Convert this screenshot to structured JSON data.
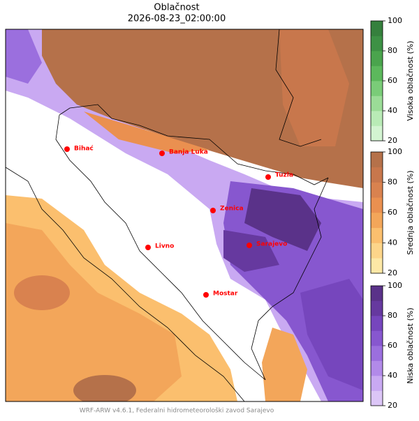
{
  "title": "Oblačnost",
  "subtitle": "2026-08-23_02:00:00",
  "cities": [
    "Bihać",
    "Banja Luka",
    "Tuzla",
    "Zenica",
    "Livno",
    "Sarajevo",
    "Mostar"
  ],
  "colorbars": [
    {
      "label": "Visoka oblačnost (%)",
      "ticks": [
        20,
        40,
        60,
        80,
        100
      ],
      "colors": [
        "#d3f4d1",
        "#b9ebb6",
        "#9bdc97",
        "#7acc78",
        "#5cb85c",
        "#4aa44d",
        "#3d9145",
        "#35803d"
      ]
    },
    {
      "label": "Srednja oblačnost (%)",
      "ticks": [
        20,
        40,
        60,
        80,
        100
      ],
      "colors": [
        "#fde8a6",
        "#fdd58a",
        "#fbbf6e",
        "#f3a65a",
        "#ea9050",
        "#d9824f",
        "#c8774c",
        "#b5714a"
      ]
    },
    {
      "label": "Niska oblačnost (%)",
      "ticks": [
        20,
        40,
        60,
        80,
        100
      ],
      "colors": [
        "#dcc6f7",
        "#c9a9f2",
        "#b28ae9",
        "#9b6fde",
        "#8757cf",
        "#7646bd",
        "#66399f",
        "#5a3289"
      ]
    }
  ],
  "footer": "WRF-ARW v4.6.1, Federalni hidrometeorološki zavod Sarajevo"
}
